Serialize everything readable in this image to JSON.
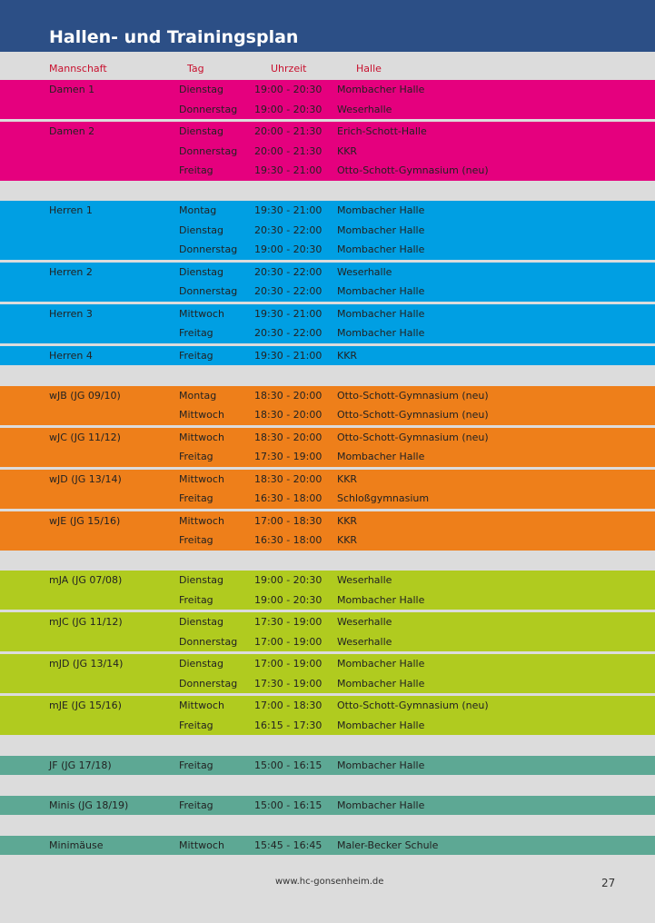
{
  "title": "Hallen- und Trainingsplan",
  "columns": {
    "team": "Mannschaft",
    "day": "Tag",
    "time": "Uhrzeit",
    "hall": "Halle"
  },
  "colors": {
    "header": "#2c4f86",
    "pink": "#e5007e",
    "blue": "#009fe3",
    "orange": "#ee7f1a",
    "green": "#b0cb1f",
    "teal": "#5da894",
    "background": "#dcdcdc",
    "column_header_text": "#c8102e"
  },
  "groups": [
    {
      "color": "pink",
      "teams": [
        {
          "name": "Damen 1",
          "sessions": [
            {
              "day": "Dienstag",
              "time": "19:00 - 20:30",
              "hall": "Mombacher Halle"
            },
            {
              "day": "Donnerstag",
              "time": "19:00 - 20:30",
              "hall": "Weserhalle"
            }
          ]
        },
        {
          "name": "Damen 2",
          "sessions": [
            {
              "day": "Dienstag",
              "time": "20:00 - 21:30",
              "hall": "Erich-Schott-Halle"
            },
            {
              "day": "Donnerstag",
              "time": "20:00 - 21:30",
              "hall": "KKR"
            },
            {
              "day": "Freitag",
              "time": "19:30 - 21:00",
              "hall": "Otto-Schott-Gymnasium (neu)"
            }
          ]
        }
      ]
    },
    {
      "color": "blue",
      "teams": [
        {
          "name": "Herren 1",
          "sessions": [
            {
              "day": "Montag",
              "time": "19:30 - 21:00",
              "hall": "Mombacher Halle"
            },
            {
              "day": "Dienstag",
              "time": "20:30 - 22:00",
              "hall": "Mombacher Halle"
            },
            {
              "day": "Donnerstag",
              "time": "19:00 - 20:30",
              "hall": "Mombacher Halle"
            }
          ]
        },
        {
          "name": "Herren 2",
          "sessions": [
            {
              "day": "Dienstag",
              "time": "20:30 - 22:00",
              "hall": "Weserhalle"
            },
            {
              "day": "Donnerstag",
              "time": "20:30 - 22:00",
              "hall": "Mombacher Halle"
            }
          ]
        },
        {
          "name": "Herren 3",
          "sessions": [
            {
              "day": "Mittwoch",
              "time": "19:30 - 21:00",
              "hall": "Mombacher Halle"
            },
            {
              "day": "Freitag",
              "time": "20:30 - 22:00",
              "hall": "Mombacher Halle"
            }
          ]
        },
        {
          "name": "Herren 4",
          "sessions": [
            {
              "day": "Freitag",
              "time": "19:30 - 21:00",
              "hall": "KKR"
            }
          ]
        }
      ]
    },
    {
      "color": "orange",
      "teams": [
        {
          "name": "wJB (JG 09/10)",
          "sessions": [
            {
              "day": "Montag",
              "time": "18:30 - 20:00",
              "hall": "Otto-Schott-Gymnasium (neu)"
            },
            {
              "day": "Mittwoch",
              "time": "18:30 - 20:00",
              "hall": "Otto-Schott-Gymnasium (neu)"
            }
          ]
        },
        {
          "name": "wJC (JG 11/12)",
          "sessions": [
            {
              "day": "Mittwoch",
              "time": "18:30 - 20:00",
              "hall": "Otto-Schott-Gymnasium (neu)"
            },
            {
              "day": "Freitag",
              "time": "17:30 - 19:00",
              "hall": "Mombacher Halle"
            }
          ]
        },
        {
          "name": "wJD (JG 13/14)",
          "sessions": [
            {
              "day": "Mittwoch",
              "time": "18:30 - 20:00",
              "hall": "KKR"
            },
            {
              "day": "Freitag",
              "time": "16:30 - 18:00",
              "hall": "Schloßgymnasium"
            }
          ]
        },
        {
          "name": "wJE (JG 15/16)",
          "sessions": [
            {
              "day": "Mittwoch",
              "time": "17:00 - 18:30",
              "hall": "KKR"
            },
            {
              "day": "Freitag",
              "time": "16:30 - 18:00",
              "hall": "KKR"
            }
          ]
        }
      ]
    },
    {
      "color": "green",
      "teams": [
        {
          "name": " mJA (JG 07/08)",
          "sessions": [
            {
              "day": "Dienstag",
              "time": "19:00 - 20:30",
              "hall": "Weserhalle"
            },
            {
              "day": "Freitag",
              "time": "19:00 - 20:30",
              "hall": "Mombacher Halle"
            }
          ]
        },
        {
          "name": "mJC (JG 11/12)",
          "sessions": [
            {
              "day": "Dienstag",
              "time": "17:30 - 19:00",
              "hall": "Weserhalle"
            },
            {
              "day": "Donnerstag",
              "time": "17:00 - 19:00",
              "hall": "Weserhalle"
            }
          ]
        },
        {
          "name": "mJD (JG 13/14)",
          "sessions": [
            {
              "day": "Dienstag",
              "time": "17:00 - 19:00",
              "hall": "Mombacher Halle"
            },
            {
              "day": "Donnerstag",
              "time": "17:30 - 19:00",
              "hall": "Mombacher Halle"
            }
          ]
        },
        {
          "name": "mJE (JG 15/16)",
          "sessions": [
            {
              "day": "Mittwoch",
              "time": "17:00 - 18:30",
              "hall": "Otto-Schott-Gymnasium (neu)"
            },
            {
              "day": "Freitag",
              "time": "16:15 - 17:30",
              "hall": "Mombacher Halle"
            }
          ]
        }
      ]
    },
    {
      "color": "teal",
      "teams": [
        {
          "name": "JF (JG 17/18)",
          "sessions": [
            {
              "day": "Freitag",
              "time": "15:00 - 16:15",
              "hall": "Mombacher Halle"
            }
          ]
        }
      ]
    },
    {
      "color": "teal",
      "teams": [
        {
          "name": "Minis (JG 18/19)",
          "sessions": [
            {
              "day": "Freitag",
              "time": "15:00 - 16:15",
              "hall": "Mombacher Halle"
            }
          ]
        }
      ]
    },
    {
      "color": "teal",
      "teams": [
        {
          "name": "Minimäuse",
          "sessions": [
            {
              "day": "Mittwoch",
              "time": "15:45 - 16:45",
              "hall": "Maler-Becker Schule"
            }
          ]
        }
      ]
    }
  ],
  "footer": {
    "url": "www.hc-gonsenheim.de",
    "page_number": "27"
  }
}
